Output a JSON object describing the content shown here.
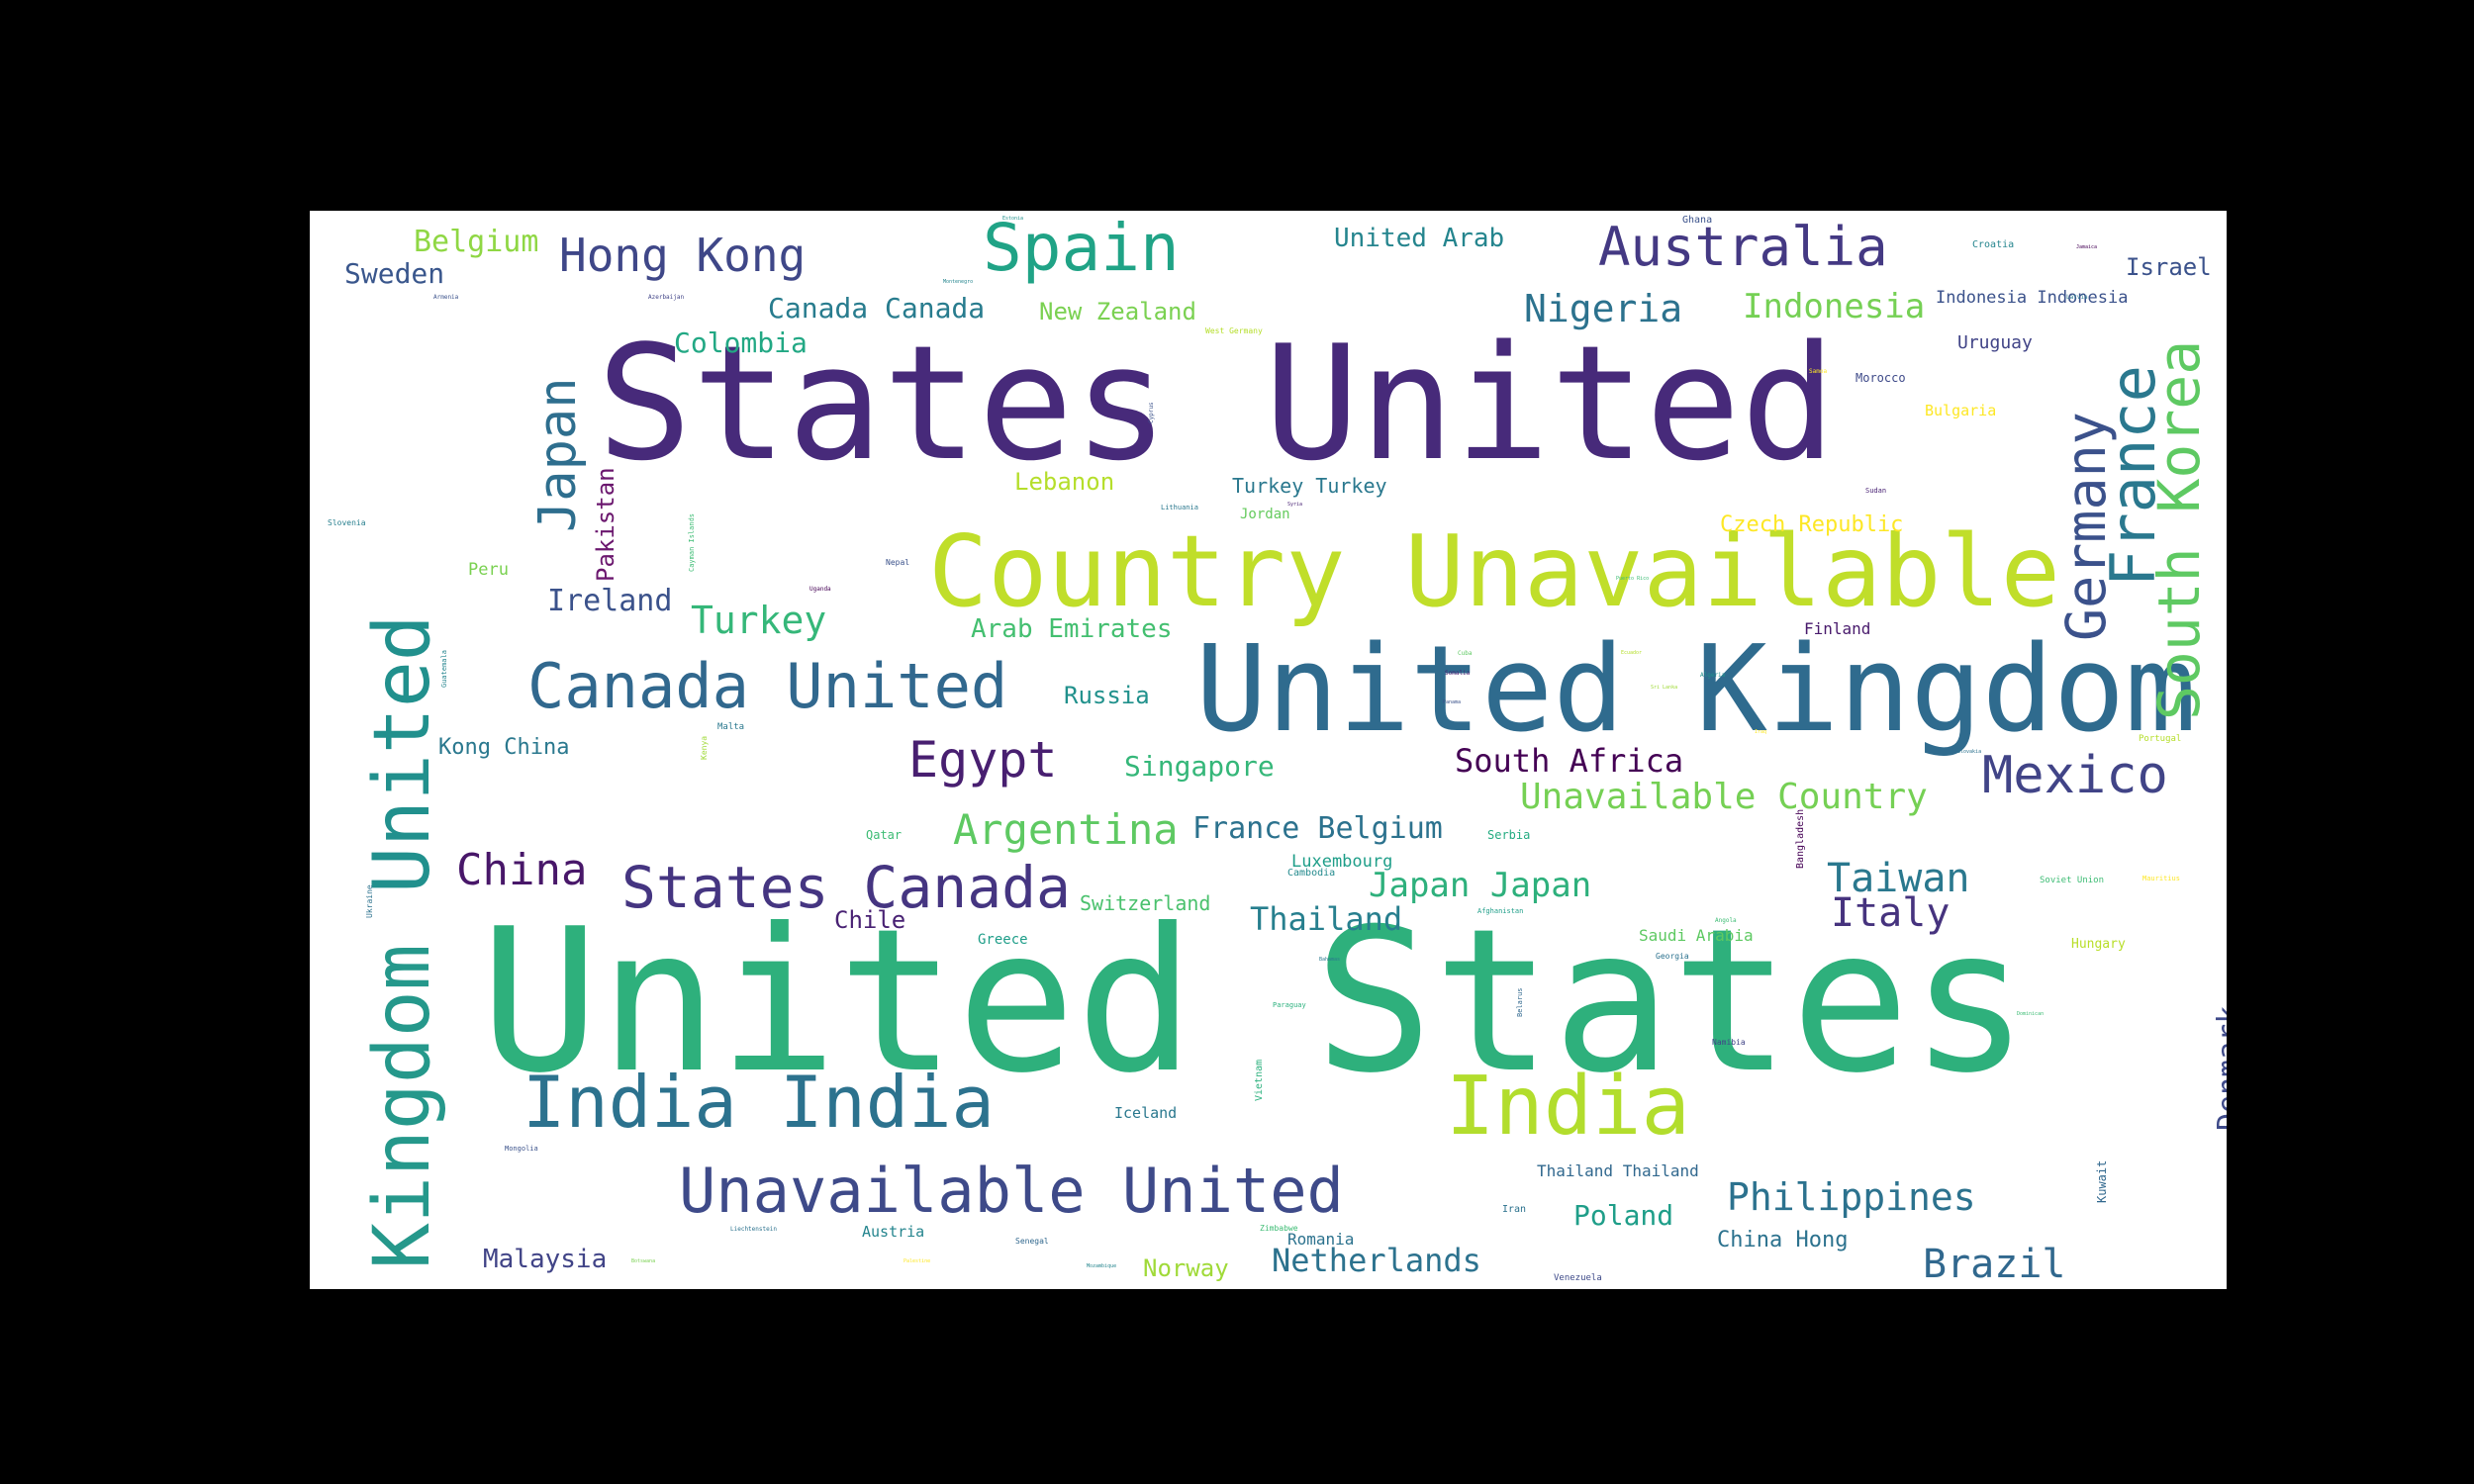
{
  "colors": {
    "background": "#000000",
    "canvas": "#ffffff"
  },
  "words": [
    {
      "text": "United States",
      "color": "#2eb07c"
    },
    {
      "text": "States United",
      "color": "#472a7a"
    },
    {
      "text": "United Kingdom",
      "color": "#2f6b8e"
    },
    {
      "text": "Country Unavailable",
      "color": "#c0de2a"
    },
    {
      "text": "Kingdom",
      "color": "#25988b"
    },
    {
      "text": "United",
      "color": "#21908d"
    },
    {
      "text": "India",
      "color": "#b2dd2d"
    },
    {
      "text": "India India",
      "color": "#2c728e"
    },
    {
      "text": "Unavailable United",
      "color": "#3e4a89"
    },
    {
      "text": "Canada United",
      "color": "#31688e"
    },
    {
      "text": "States Canada",
      "color": "#453581"
    },
    {
      "text": "South Korea",
      "color": "#5ec962"
    },
    {
      "text": "France",
      "color": "#2a788e"
    },
    {
      "text": "Germany",
      "color": "#3b518b"
    },
    {
      "text": "Spain",
      "color": "#20a386"
    },
    {
      "text": "Australia",
      "color": "#443983"
    },
    {
      "text": "Japan",
      "color": "#2e6e8e"
    },
    {
      "text": "Mexico",
      "color": "#414487"
    },
    {
      "text": "Hong Kong",
      "color": "#3f4788"
    },
    {
      "text": "Egypt",
      "color": "#481f70"
    },
    {
      "text": "China",
      "color": "#481769"
    },
    {
      "text": "Argentina",
      "color": "#5ec962"
    },
    {
      "text": "Unavailable Country",
      "color": "#75d054"
    },
    {
      "text": "Philippines",
      "color": "#2c728e"
    },
    {
      "text": "Brazil",
      "color": "#31688e"
    },
    {
      "text": "Taiwan",
      "color": "#2a788e"
    },
    {
      "text": "Italy",
      "color": "#46337e"
    },
    {
      "text": "Nigeria",
      "color": "#2c728e"
    },
    {
      "text": "Indonesia",
      "color": "#75d054"
    },
    {
      "text": "Turkey",
      "color": "#35b779"
    },
    {
      "text": "Japan Japan",
      "color": "#2eb07c"
    },
    {
      "text": "Netherlands",
      "color": "#2c728e"
    },
    {
      "text": "Thailand",
      "color": "#277f8e"
    },
    {
      "text": "South Africa",
      "color": "#440154"
    },
    {
      "text": "France Belgium",
      "color": "#2c728e"
    },
    {
      "text": "Ireland",
      "color": "#3b528b"
    },
    {
      "text": "Denmark",
      "color": "#3e4a89"
    },
    {
      "text": "Canada Canada",
      "color": "#287c8e"
    },
    {
      "text": "Belgium",
      "color": "#8fd744"
    },
    {
      "text": "Sweden",
      "color": "#39568c"
    },
    {
      "text": "Colombia",
      "color": "#22a884"
    },
    {
      "text": "Pakistan",
      "color": "#6b176e"
    },
    {
      "text": "Poland",
      "color": "#1f9e89"
    },
    {
      "text": "Malaysia",
      "color": "#414487"
    },
    {
      "text": "Singapore",
      "color": "#35b779"
    },
    {
      "text": "Russia",
      "color": "#21918c"
    },
    {
      "text": "Norway",
      "color": "#a0da39"
    },
    {
      "text": "New Zealand",
      "color": "#7ad151"
    },
    {
      "text": "United Arab",
      "color": "#25858e"
    },
    {
      "text": "Arab Emirates",
      "color": "#44bf70"
    },
    {
      "text": "Lebanon",
      "color": "#b5de2b"
    },
    {
      "text": "Kong China",
      "color": "#2a788e"
    },
    {
      "text": "Chile",
      "color": "#482173"
    },
    {
      "text": "Switzerland",
      "color": "#4ac16d"
    },
    {
      "text": "China Hong",
      "color": "#2c728e"
    },
    {
      "text": "Israel",
      "color": "#3b528b"
    },
    {
      "text": "Czech Republic",
      "color": "#fde725"
    },
    {
      "text": "Indonesia Indonesia",
      "color": "#3b528b"
    },
    {
      "text": "Uruguay",
      "color": "#414487"
    },
    {
      "text": "Turkey Turkey",
      "color": "#2a788e"
    },
    {
      "text": "Saudi Arabia",
      "color": "#5ec962"
    },
    {
      "text": "Thailand Thailand",
      "color": "#31688e"
    },
    {
      "text": "Luxembourg",
      "color": "#1f9e89"
    },
    {
      "text": "Romania",
      "color": "#2c728e"
    },
    {
      "text": "Peru",
      "color": "#7ad151"
    },
    {
      "text": "Bulgaria",
      "color": "#fde725"
    },
    {
      "text": "Finland",
      "color": "#481a6c"
    },
    {
      "text": "Iceland",
      "color": "#2a788e"
    },
    {
      "text": "Austria",
      "color": "#25858e"
    },
    {
      "text": "Greece",
      "color": "#1f9e89"
    },
    {
      "text": "Hungary",
      "color": "#b8de29"
    },
    {
      "text": "Jordan",
      "color": "#65cb5e"
    },
    {
      "text": "Morocco",
      "color": "#3e4a89"
    },
    {
      "text": "Kuwait",
      "color": "#31688e"
    },
    {
      "text": "Bangladesh",
      "color": "#440154"
    },
    {
      "text": "Serbia",
      "color": "#25ac82"
    },
    {
      "text": "Qatar",
      "color": "#3dbc74"
    },
    {
      "text": "Cambodia",
      "color": "#238a8d"
    },
    {
      "text": "Ghana",
      "color": "#3b528b"
    },
    {
      "text": "Croatia",
      "color": "#25858e"
    },
    {
      "text": "Vietnam",
      "color": "#2cb17e"
    },
    {
      "text": "Iran",
      "color": "#2c728e"
    },
    {
      "text": "Venezuela",
      "color": "#3e4a89"
    },
    {
      "text": "Portugal",
      "color": "#b5de2b"
    },
    {
      "text": "Malta",
      "color": "#2a788e"
    },
    {
      "text": "Soviet Union",
      "color": "#3dbc74"
    },
    {
      "text": "Ukraine",
      "color": "#2c728e"
    },
    {
      "text": "Slovenia",
      "color": "#277f8e"
    },
    {
      "text": "Kenya",
      "color": "#a0da39"
    },
    {
      "text": "Cayman Islands",
      "color": "#3dbc74"
    },
    {
      "text": "West Germany",
      "color": "#b5de2b"
    },
    {
      "text": "Nepal",
      "color": "#3b528b"
    },
    {
      "text": "Zimbabwe",
      "color": "#3dbc74"
    },
    {
      "text": "Georgia",
      "color": "#2c728e"
    },
    {
      "text": "Namibia",
      "color": "#414487"
    },
    {
      "text": "Senegal",
      "color": "#31688e"
    },
    {
      "text": "Mongolia",
      "color": "#3b528b"
    },
    {
      "text": "Afghanistan",
      "color": "#1f9e89"
    },
    {
      "text": "Sudan",
      "color": "#482173"
    },
    {
      "text": "Lithuania",
      "color": "#2a788e"
    },
    {
      "text": "Guatemala",
      "color": "#25858e"
    },
    {
      "text": "Uganda",
      "color": "#440154"
    },
    {
      "text": "Mauritius",
      "color": "#fde725"
    },
    {
      "text": "Paraguay",
      "color": "#2cb17e"
    },
    {
      "text": "Cyprus",
      "color": "#3b528b"
    },
    {
      "text": "Belarus",
      "color": "#31688e"
    },
    {
      "text": "Algeria",
      "color": "#21918c"
    },
    {
      "text": "Somalia",
      "color": "#482173"
    },
    {
      "text": "Angola",
      "color": "#3dbc74"
    },
    {
      "text": "Liechtenstein",
      "color": "#2c728e"
    },
    {
      "text": "Cuba",
      "color": "#5ec962"
    },
    {
      "text": "Armenia",
      "color": "#3b528b"
    },
    {
      "text": "Azerbaijan",
      "color": "#414487"
    },
    {
      "text": "Samoa",
      "color": "#fde725"
    },
    {
      "text": "Latvia",
      "color": "#2a788e"
    },
    {
      "text": "Montenegro",
      "color": "#25858e"
    },
    {
      "text": "Jamaica",
      "color": "#440154"
    },
    {
      "text": "Botswana",
      "color": "#7ad151"
    },
    {
      "text": "Slovakia",
      "color": "#2c728e"
    },
    {
      "text": "Syria",
      "color": "#482173"
    },
    {
      "text": "Palestine",
      "color": "#fde725"
    },
    {
      "text": "Puerto Rico",
      "color": "#3dbc74"
    },
    {
      "text": "Bahamas",
      "color": "#2a788e"
    },
    {
      "text": "Mozambique",
      "color": "#25858e"
    },
    {
      "text": "Ecuador",
      "color": "#b5de2b"
    },
    {
      "text": "Panama",
      "color": "#3b528b"
    },
    {
      "text": "Sri Lanka",
      "color": "#a0da39"
    },
    {
      "text": "Estonia",
      "color": "#21918c"
    },
    {
      "text": "Iraq",
      "color": "#fde725"
    },
    {
      "text": "Dominican",
      "color": "#3dbc74"
    }
  ]
}
